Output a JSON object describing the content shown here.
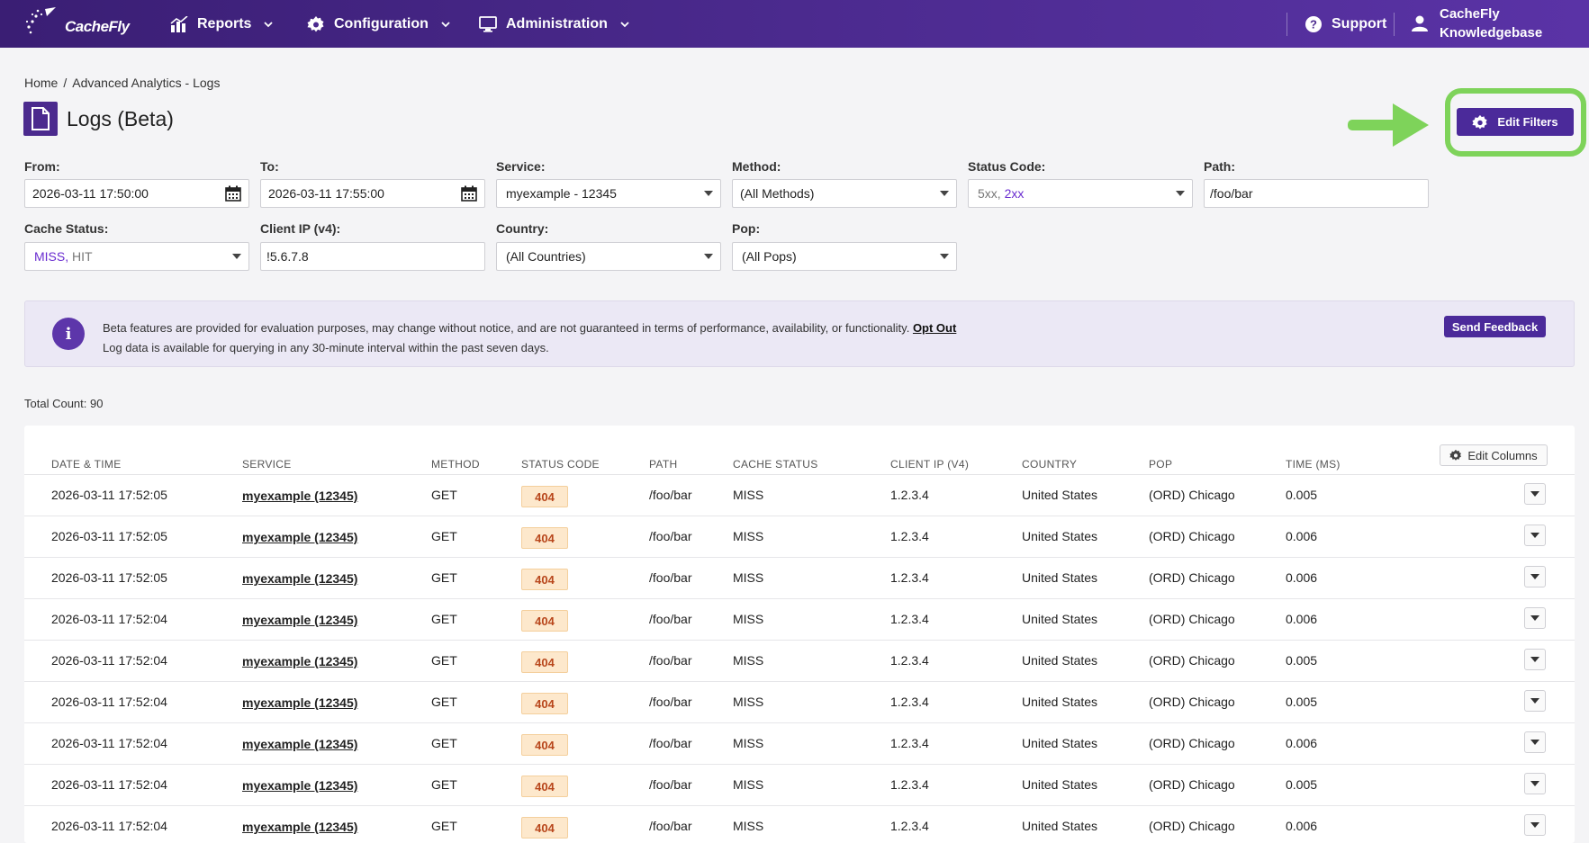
{
  "nav": {
    "logo": "CacheFly",
    "reports": "Reports",
    "configuration": "Configuration",
    "administration": "Administration",
    "support": "Support",
    "knowledgebase_1": "CacheFly",
    "knowledgebase_2": "Knowledgebase"
  },
  "breadcrumb": {
    "home": "Home",
    "separator": "/",
    "current": "Advanced Analytics - Logs"
  },
  "page_title": "Logs (Beta)",
  "edit_filters": "Edit Filters",
  "filters": {
    "from": {
      "label": "From:",
      "value": "2026-03-11 17:50:00"
    },
    "to": {
      "label": "To:",
      "value": "2026-03-11 17:55:00"
    },
    "service": {
      "label": "Service:",
      "value": "myexample - 12345"
    },
    "method": {
      "label": "Method:",
      "value": "(All Methods)"
    },
    "status_code": {
      "label": "Status Code:",
      "value_a": "5xx,",
      "value_b": "2xx"
    },
    "path": {
      "label": "Path:",
      "value": "/foo/bar"
    },
    "cache_status": {
      "label": "Cache Status:",
      "value_a": "MISS,",
      "value_b": "HIT"
    },
    "client_ip": {
      "label": "Client IP (v4):",
      "value": "!5.6.7.8"
    },
    "country": {
      "label": "Country:",
      "value": "(All Countries)"
    },
    "pop": {
      "label": "Pop:",
      "value": "(All Pops)"
    }
  },
  "banner": {
    "line1": "Beta features are provided for evaluation purposes, may change without notice, and are not guaranteed in terms of performance, availability, or functionality.",
    "opt_out": "Opt Out",
    "line2": "Log data is available for querying in any 30-minute interval within the past seven days.",
    "send_feedback": "Send Feedback"
  },
  "total_count": "Total Count: 90",
  "table": {
    "edit_columns": "Edit Columns",
    "headers": [
      "DATE & TIME",
      "SERVICE",
      "METHOD",
      "STATUS CODE",
      "PATH",
      "CACHE STATUS",
      "CLIENT IP (V4)",
      "COUNTRY",
      "POP",
      "TIME (MS)"
    ],
    "rows": [
      {
        "dt": "2026-03-11 17:52:05",
        "svc": "myexample (12345)",
        "method": "GET",
        "status": "404",
        "path": "/foo/bar",
        "cache": "MISS",
        "ip": "1.2.3.4",
        "country": "United States",
        "pop": "(ORD) Chicago",
        "time": "0.005"
      },
      {
        "dt": "2026-03-11 17:52:05",
        "svc": "myexample (12345)",
        "method": "GET",
        "status": "404",
        "path": "/foo/bar",
        "cache": "MISS",
        "ip": "1.2.3.4",
        "country": "United States",
        "pop": "(ORD) Chicago",
        "time": "0.006"
      },
      {
        "dt": "2026-03-11 17:52:05",
        "svc": "myexample (12345)",
        "method": "GET",
        "status": "404",
        "path": "/foo/bar",
        "cache": "MISS",
        "ip": "1.2.3.4",
        "country": "United States",
        "pop": "(ORD) Chicago",
        "time": "0.006"
      },
      {
        "dt": "2026-03-11 17:52:04",
        "svc": "myexample (12345)",
        "method": "GET",
        "status": "404",
        "path": "/foo/bar",
        "cache": "MISS",
        "ip": "1.2.3.4",
        "country": "United States",
        "pop": "(ORD) Chicago",
        "time": "0.006"
      },
      {
        "dt": "2026-03-11 17:52:04",
        "svc": "myexample (12345)",
        "method": "GET",
        "status": "404",
        "path": "/foo/bar",
        "cache": "MISS",
        "ip": "1.2.3.4",
        "country": "United States",
        "pop": "(ORD) Chicago",
        "time": "0.005"
      },
      {
        "dt": "2026-03-11 17:52:04",
        "svc": "myexample (12345)",
        "method": "GET",
        "status": "404",
        "path": "/foo/bar",
        "cache": "MISS",
        "ip": "1.2.3.4",
        "country": "United States",
        "pop": "(ORD) Chicago",
        "time": "0.005"
      },
      {
        "dt": "2026-03-11 17:52:04",
        "svc": "myexample (12345)",
        "method": "GET",
        "status": "404",
        "path": "/foo/bar",
        "cache": "MISS",
        "ip": "1.2.3.4",
        "country": "United States",
        "pop": "(ORD) Chicago",
        "time": "0.006"
      },
      {
        "dt": "2026-03-11 17:52:04",
        "svc": "myexample (12345)",
        "method": "GET",
        "status": "404",
        "path": "/foo/bar",
        "cache": "MISS",
        "ip": "1.2.3.4",
        "country": "United States",
        "pop": "(ORD) Chicago",
        "time": "0.005"
      },
      {
        "dt": "2026-03-11 17:52:04",
        "svc": "myexample (12345)",
        "method": "GET",
        "status": "404",
        "path": "/foo/bar",
        "cache": "MISS",
        "ip": "1.2.3.4",
        "country": "United States",
        "pop": "(ORD) Chicago",
        "time": "0.006"
      }
    ]
  },
  "colors": {
    "nav": "#4b2a8e",
    "accent": "#4b2a9a",
    "highlight": "#7ed35a",
    "badge_text": "#b8461b"
  }
}
